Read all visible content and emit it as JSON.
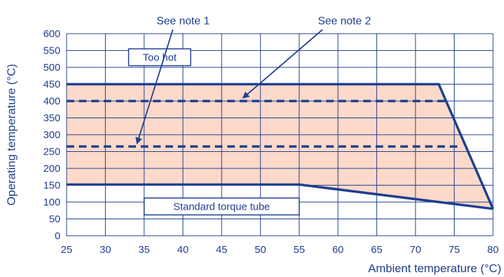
{
  "chart_data": {
    "type": "area",
    "xlabel": "Ambient temperature (°C)",
    "ylabel": "Operating temperature (°C)",
    "xlim": [
      25,
      80
    ],
    "ylim": [
      0,
      600
    ],
    "x_ticks": [
      25,
      30,
      35,
      40,
      45,
      50,
      55,
      60,
      65,
      70,
      75,
      80
    ],
    "y_ticks": [
      0,
      50,
      100,
      150,
      200,
      250,
      300,
      350,
      400,
      450,
      500,
      550,
      600
    ],
    "grid": true,
    "region": {
      "upper": [
        [
          25,
          450
        ],
        [
          73,
          450
        ],
        [
          80,
          80
        ]
      ],
      "lower": [
        [
          25,
          152
        ],
        [
          55,
          152
        ],
        [
          80,
          80
        ]
      ],
      "fill": "#fdd9c9"
    },
    "lines": [
      {
        "style": "solid",
        "points": [
          [
            25,
            450
          ],
          [
            73,
            450
          ],
          [
            80,
            80
          ]
        ]
      },
      {
        "style": "solid",
        "points": [
          [
            25,
            152
          ],
          [
            55,
            152
          ],
          [
            80,
            80
          ]
        ]
      },
      {
        "style": "dashed",
        "points": [
          [
            25,
            400
          ],
          [
            74,
            400
          ]
        ]
      },
      {
        "style": "dashed",
        "points": [
          [
            25,
            265
          ],
          [
            76,
            265
          ]
        ]
      }
    ],
    "annotations": {
      "too_hot": {
        "text": "Too hot",
        "x": 33,
        "x2": 41,
        "y": 555,
        "y2": 505
      },
      "standard": {
        "text": "Standard torque tube",
        "x": 35,
        "x2": 55,
        "y": 112,
        "y2": 62
      },
      "note1": {
        "text": "See note 1",
        "text_x": 36.6,
        "text_y": 628,
        "arrow_from": [
          38.7,
          612
        ],
        "arrow_to": [
          34.1,
          275
        ]
      },
      "note2": {
        "text": "See note 2",
        "text_x": 57.4,
        "text_y": 628,
        "arrow_from": [
          58,
          612
        ],
        "arrow_to": [
          47.8,
          410
        ]
      }
    },
    "colors": {
      "line": "#1f3f8f",
      "grid": "#1f3f8f",
      "text": "#1f3f8f",
      "fill": "#fdd9c9"
    }
  }
}
